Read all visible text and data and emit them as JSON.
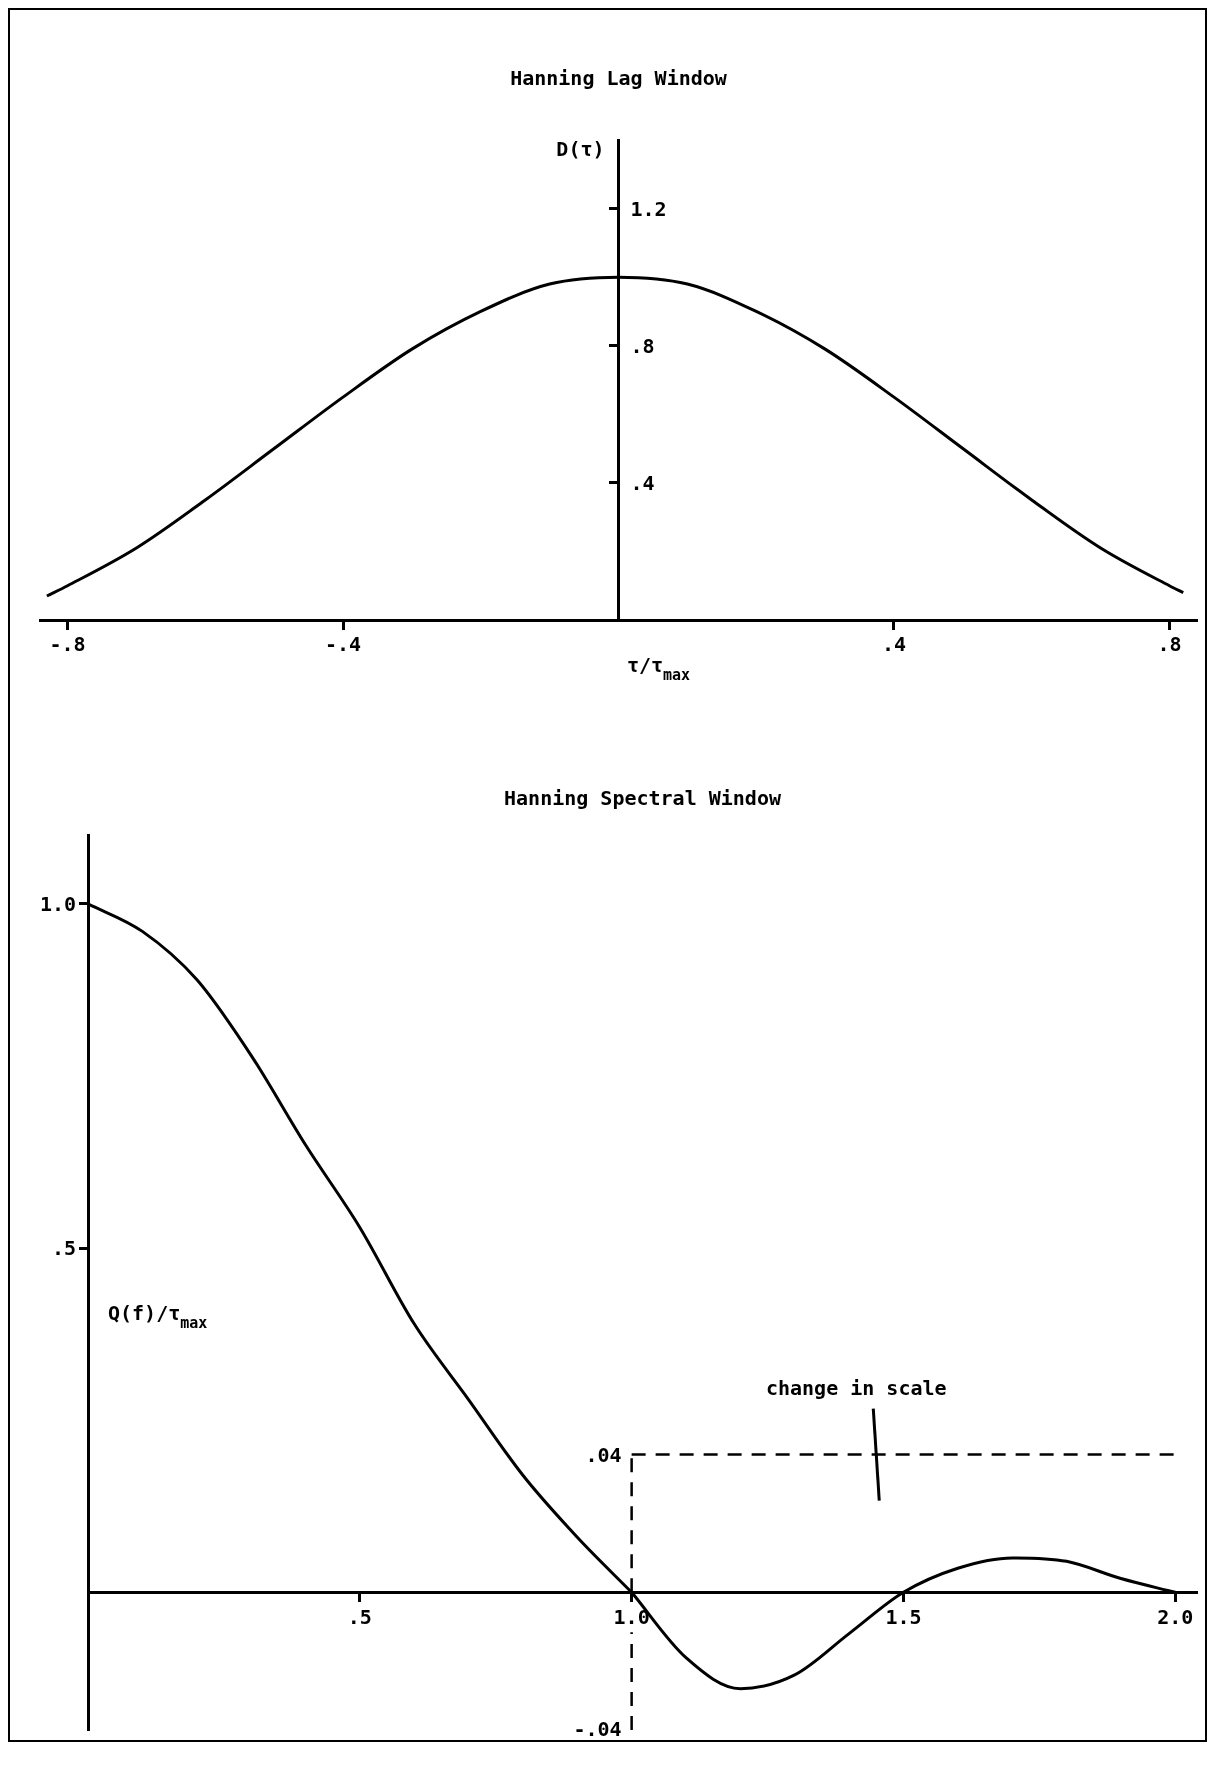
{
  "chart_data": [
    {
      "type": "line",
      "title": "Hanning Lag Window",
      "xlabel": "τ/τ$_{max}$",
      "ylabel": "D(τ)",
      "marker": "none",
      "series": [
        {
          "color": "#000000",
          "x": [
            -0.83,
            -0.8,
            -0.7,
            -0.6,
            -0.5,
            -0.4,
            -0.3,
            -0.2,
            -0.1,
            0,
            0.1,
            0.2,
            0.3,
            0.4,
            0.5,
            0.6,
            0.7,
            0.8,
            0.82
          ],
          "values": [
            0.07,
            0.1,
            0.21,
            0.35,
            0.5,
            0.65,
            0.79,
            0.9,
            0.98,
            1.0,
            0.98,
            0.9,
            0.79,
            0.65,
            0.5,
            0.35,
            0.21,
            0.1,
            0.08
          ]
        }
      ],
      "xlim": [
        -0.84,
        0.84
      ],
      "ylim": [
        0,
        1.4
      ],
      "xticks": [
        {
          "value": -0.8,
          "label": "-.8"
        },
        {
          "value": -0.4,
          "label": "-.4"
        },
        {
          "value": 0.4,
          "label": ".4"
        },
        {
          "value": 0.8,
          "label": ".8"
        }
      ],
      "yticks": [
        {
          "value": 0.4,
          "label": ".4"
        },
        {
          "value": 0.8,
          "label": ".8"
        },
        {
          "value": 1.2,
          "label": "1.2"
        }
      ]
    },
    {
      "type": "line",
      "title": "Hanning Spectral Window",
      "ylabel": "Q(f)/τ$_{max}$",
      "marker": "none",
      "series": [
        {
          "color": "#000000",
          "x": [
            0,
            0.1,
            0.2,
            0.3,
            0.4,
            0.5,
            0.6,
            0.7,
            0.8,
            0.9,
            1.0
          ],
          "values": [
            1.0,
            0.96,
            0.89,
            0.78,
            0.65,
            0.53,
            0.39,
            0.28,
            0.17,
            0.08,
            0
          ]
        },
        {
          "color": "#000000",
          "axis": "y2",
          "x": [
            1.0,
            1.1,
            1.2,
            1.3,
            1.4,
            1.5,
            1.6,
            1.7,
            1.8,
            1.9,
            2.0
          ],
          "values": [
            0,
            -0.019,
            -0.028,
            -0.024,
            -0.012,
            0,
            0.007,
            0.01,
            0.009,
            0.004,
            0
          ]
        }
      ],
      "xlim": [
        0,
        2.04
      ],
      "ylim": [
        -0.2,
        1.1
      ],
      "y2lim": [
        -0.04,
        0.22
      ],
      "xticks": [
        {
          "value": 0.5,
          "label": ".5"
        },
        {
          "value": 1.0,
          "label": "1.0"
        },
        {
          "value": 1.5,
          "label": "1.5"
        },
        {
          "value": 2.0,
          "label": "2.0"
        }
      ],
      "yticks": [
        {
          "value": 0.5,
          "label": ".5"
        },
        {
          "value": 1.0,
          "label": "1.0"
        }
      ],
      "y2ticks": [
        {
          "value": -0.04,
          "label": "-.04"
        },
        {
          "value": 0.04,
          "label": ".04"
        }
      ],
      "ref_lines": [
        {
          "axis": "y2",
          "value": 0.04,
          "label": "change in scale",
          "line_style": "dashed"
        },
        {
          "axis": "x",
          "value": 1.0,
          "line_style": "dashed"
        }
      ]
    }
  ]
}
